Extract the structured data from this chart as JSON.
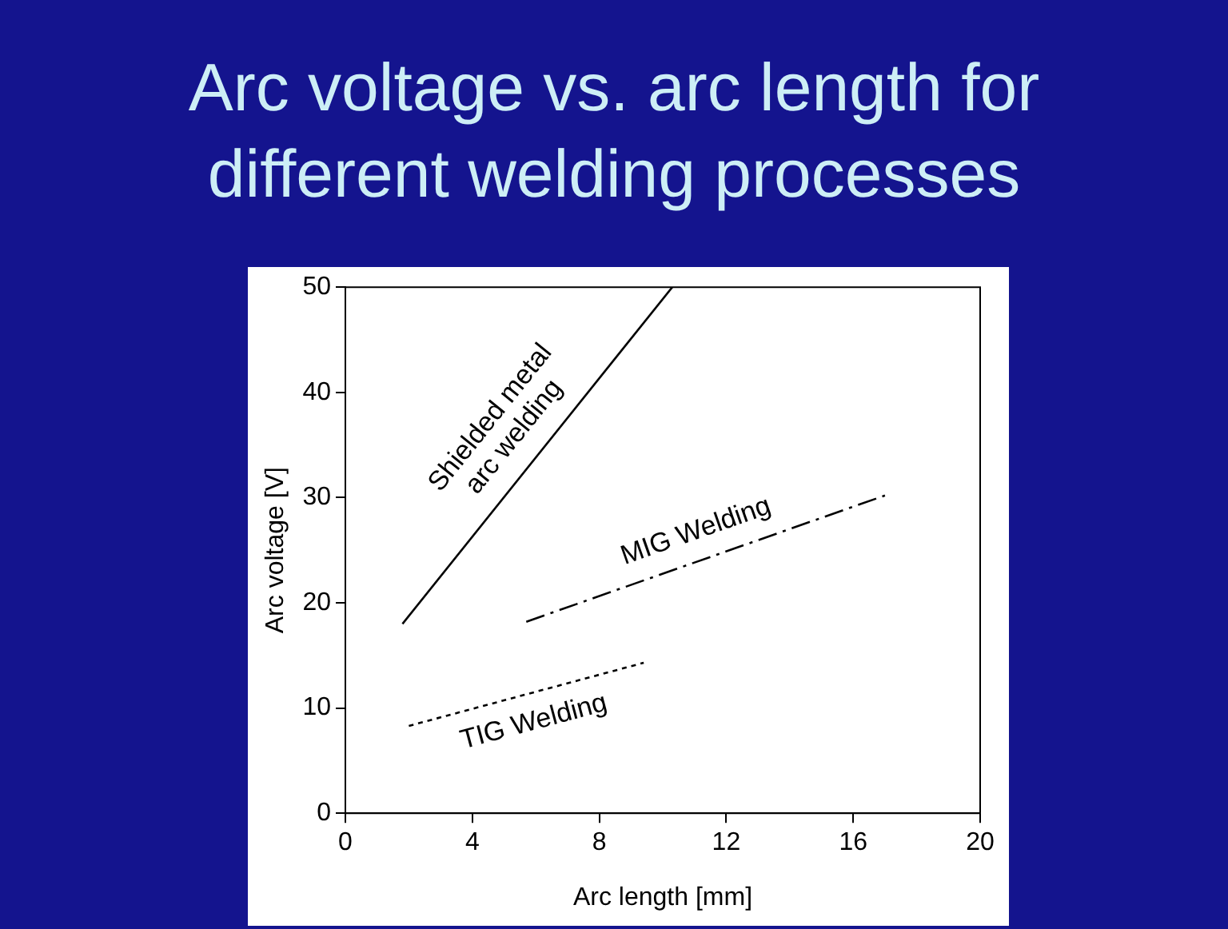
{
  "chart_data": {
    "type": "line",
    "title": "Arc voltage vs. arc length for different welding processes",
    "xlabel": "Arc length [mm]",
    "ylabel": "Arc voltage [V]",
    "xlim": [
      0,
      20
    ],
    "xticks": [
      0,
      4,
      8,
      12,
      16,
      20
    ],
    "ylim": [
      0,
      50
    ],
    "yticks": [
      0,
      10,
      20,
      30,
      40,
      50
    ],
    "grid": false,
    "marker": "none",
    "series": [
      {
        "name": "Shielded metal arc welding",
        "color": "#000000",
        "line_style": "solid",
        "x": [
          1.8,
          10.3
        ],
        "values": [
          18,
          50
        ]
      },
      {
        "name": "MIG Welding",
        "color": "#000000",
        "line_style": "dashed",
        "x": [
          5.7,
          17
        ],
        "values": [
          18.2,
          30.2
        ]
      },
      {
        "name": "TIG Welding",
        "color": "#000000",
        "line_style": "dotted",
        "x": [
          2,
          9.4
        ],
        "values": [
          8.3,
          14.3
        ]
      }
    ]
  }
}
